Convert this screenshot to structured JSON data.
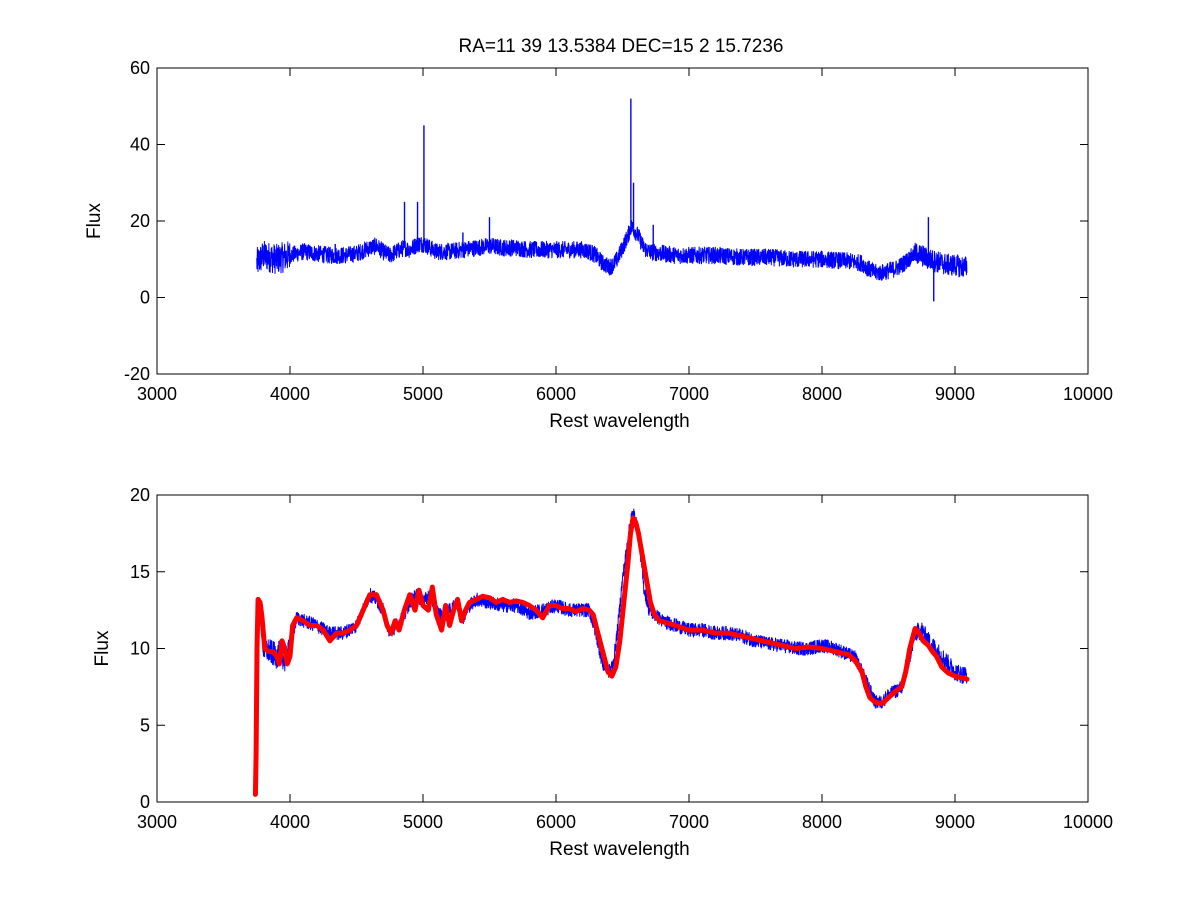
{
  "figure": {
    "title": "RA=11  39  13.5384    DEC=15   2  15.7236"
  },
  "chart_data": [
    {
      "type": "line",
      "title": "RA=11  39  13.5384    DEC=15   2  15.7236",
      "xlabel": "Rest wavelength",
      "ylabel": "Flux",
      "xlim": [
        3000,
        10000
      ],
      "ylim": [
        -20,
        60
      ],
      "xticks": [
        3000,
        4000,
        5000,
        6000,
        7000,
        8000,
        9000,
        10000
      ],
      "yticks": [
        -20,
        0,
        20,
        40,
        60
      ],
      "grid": false,
      "series": [
        {
          "color": "#0000ff",
          "noise": 2.2,
          "x": [
            3750,
            3800,
            3900,
            4000,
            4100,
            4200,
            4300,
            4400,
            4500,
            4600,
            4650,
            4700,
            4750,
            4800,
            4860,
            4900,
            4960,
            5007,
            5050,
            5100,
            5200,
            5300,
            5400,
            5500,
            5600,
            5700,
            5800,
            5900,
            6000,
            6100,
            6200,
            6250,
            6300,
            6350,
            6400,
            6430,
            6460,
            6500,
            6540,
            6563,
            6583,
            6620,
            6660,
            6700,
            6800,
            6900,
            7000,
            7200,
            7400,
            7600,
            7800,
            8000,
            8200,
            8300,
            8350,
            8400,
            8450,
            8500,
            8550,
            8600,
            8650,
            8700,
            8750,
            8800,
            8850,
            8900,
            8950,
            9000,
            9050,
            9090
          ],
          "y": [
            9,
            11,
            10,
            11,
            12,
            11.5,
            11,
            11,
            11.5,
            13,
            13.5,
            12,
            11,
            12,
            13,
            12.5,
            14,
            14,
            13,
            12,
            12,
            12.5,
            13,
            13.5,
            13,
            13,
            12.5,
            12.5,
            12.5,
            12.5,
            12.5,
            12,
            11,
            9,
            8,
            8.5,
            10,
            13,
            16,
            18.5,
            18,
            16,
            13,
            12,
            11.5,
            11,
            11,
            11,
            10.5,
            10.5,
            10,
            10,
            9.5,
            9,
            7.5,
            6.5,
            6.5,
            7,
            7.5,
            8.5,
            10,
            11.5,
            11,
            10,
            9.5,
            9,
            8.5,
            8.5,
            8,
            8
          ]
        }
      ],
      "emission_spikes": [
        {
          "x": 4340,
          "y": 14
        },
        {
          "x": 4861,
          "y": 25
        },
        {
          "x": 4959,
          "y": 25
        },
        {
          "x": 5007,
          "y": 45
        },
        {
          "x": 5300,
          "y": 17
        },
        {
          "x": 5500,
          "y": 21
        },
        {
          "x": 6563,
          "y": 52
        },
        {
          "x": 6583,
          "y": 30
        },
        {
          "x": 6731,
          "y": 19
        },
        {
          "x": 8800,
          "y": 21
        },
        {
          "x": 8840,
          "y": -1
        }
      ]
    },
    {
      "type": "line",
      "xlabel": "Rest wavelength",
      "ylabel": "Flux",
      "xlim": [
        3000,
        10000
      ],
      "ylim": [
        0,
        20
      ],
      "xticks": [
        3000,
        4000,
        5000,
        6000,
        7000,
        8000,
        9000,
        10000
      ],
      "yticks": [
        0,
        5,
        10,
        15,
        20
      ],
      "grid": false,
      "series": [
        {
          "color": "#0000ff",
          "noise": 0.45,
          "x": [
            3740,
            3760,
            3780,
            3800,
            3850,
            3900,
            3930,
            3960,
            4000,
            4050,
            4100,
            4200,
            4300,
            4400,
            4500,
            4550,
            4600,
            4650,
            4700,
            4750,
            4800,
            4850,
            4900,
            4950,
            5000,
            5050,
            5100,
            5150,
            5200,
            5250,
            5300,
            5350,
            5400,
            5500,
            5600,
            5700,
            5800,
            5900,
            6000,
            6100,
            6200,
            6250,
            6300,
            6350,
            6400,
            6430,
            6460,
            6500,
            6540,
            6563,
            6583,
            6620,
            6660,
            6700,
            6800,
            6900,
            7000,
            7100,
            7200,
            7300,
            7400,
            7500,
            7600,
            7700,
            7800,
            7900,
            8000,
            8100,
            8200,
            8250,
            8300,
            8350,
            8400,
            8450,
            8500,
            8550,
            8600,
            8650,
            8700,
            8750,
            8800,
            8850,
            8900,
            8950,
            9000,
            9050,
            9090
          ],
          "y": [
            9.5,
            12.5,
            12,
            10,
            9.8,
            9.5,
            9.8,
            9.2,
            10,
            12,
            11.8,
            11.5,
            11,
            11,
            11.5,
            12.5,
            13.5,
            13.2,
            12.5,
            11,
            11.5,
            12,
            13,
            13.5,
            13,
            13.5,
            12.5,
            12,
            12.5,
            12.8,
            12,
            12.8,
            13.2,
            13,
            12.8,
            12.8,
            12.3,
            12.5,
            12.8,
            12.5,
            12.5,
            12.5,
            11,
            9,
            8.5,
            9,
            11,
            14.5,
            17,
            18.5,
            18.8,
            17.5,
            14,
            12.5,
            11.8,
            11.5,
            11.2,
            11.2,
            11,
            11,
            10.8,
            10.5,
            10.3,
            10.2,
            10,
            10,
            10.2,
            10,
            9.6,
            9.4,
            8.5,
            7.5,
            6.5,
            6.5,
            7,
            7.2,
            7.5,
            9,
            11,
            11.2,
            10.5,
            10,
            9.5,
            9,
            8.5,
            8.3,
            8.3
          ]
        },
        {
          "color": "#ff0000",
          "noise": 0,
          "x": [
            3740,
            3745,
            3752,
            3760,
            3775,
            3790,
            3810,
            3840,
            3870,
            3900,
            3920,
            3940,
            3960,
            3980,
            4000,
            4020,
            4050,
            4100,
            4150,
            4200,
            4250,
            4300,
            4350,
            4400,
            4450,
            4500,
            4550,
            4600,
            4650,
            4700,
            4730,
            4760,
            4790,
            4820,
            4860,
            4900,
            4940,
            4970,
            5000,
            5040,
            5070,
            5100,
            5140,
            5170,
            5200,
            5230,
            5260,
            5290,
            5320,
            5350,
            5400,
            5450,
            5500,
            5550,
            5600,
            5650,
            5700,
            5750,
            5800,
            5850,
            5900,
            5950,
            6000,
            6050,
            6100,
            6150,
            6200,
            6250,
            6280,
            6300,
            6330,
            6360,
            6390,
            6420,
            6450,
            6480,
            6510,
            6540,
            6560,
            6580,
            6600,
            6620,
            6650,
            6680,
            6710,
            6740,
            6780,
            6820,
            6900,
            7000,
            7100,
            7200,
            7300,
            7400,
            7500,
            7600,
            7700,
            7800,
            7900,
            8000,
            8100,
            8200,
            8250,
            8300,
            8330,
            8360,
            8400,
            8450,
            8500,
            8550,
            8600,
            8630,
            8660,
            8700,
            8730,
            8760,
            8800,
            8830,
            8860,
            8900,
            8950,
            9000,
            9050,
            9090
          ],
          "y": [
            0.5,
            3,
            10,
            13.2,
            13,
            12,
            10,
            9.8,
            9.8,
            9.5,
            9,
            10.5,
            10,
            9,
            9.5,
            11.5,
            12,
            11.8,
            11.5,
            11.5,
            11.2,
            10.5,
            11,
            11,
            11.2,
            11.5,
            12.5,
            13.5,
            13.5,
            12.5,
            11.5,
            11,
            11.8,
            11.2,
            12.5,
            13.5,
            12.5,
            13.8,
            12.8,
            12.5,
            14,
            12.2,
            11.2,
            12.8,
            11.5,
            12.5,
            13.2,
            11.8,
            12.5,
            13,
            13.2,
            13.4,
            13.3,
            13,
            13.2,
            13,
            13.1,
            13,
            12.8,
            12.5,
            12,
            12.8,
            12.8,
            12.6,
            12.6,
            12.4,
            12.6,
            12.5,
            12.2,
            11.5,
            10.5,
            9.5,
            8.5,
            8.2,
            8.8,
            10.5,
            13,
            15.5,
            17.5,
            18.5,
            18.2,
            17.5,
            16,
            14.5,
            13,
            12.2,
            11.8,
            11.7,
            11.5,
            11.2,
            11.2,
            11,
            11,
            10.8,
            10.6,
            10.4,
            10.2,
            10,
            10.1,
            10,
            9.8,
            9.6,
            9.2,
            8.5,
            7.5,
            6.8,
            6.5,
            6.4,
            6.8,
            7.2,
            7.5,
            8.5,
            10,
            11.3,
            11,
            10.5,
            10.2,
            9.8,
            9.5,
            8.8,
            8.4,
            8.2,
            8.1,
            8
          ]
        }
      ]
    }
  ]
}
